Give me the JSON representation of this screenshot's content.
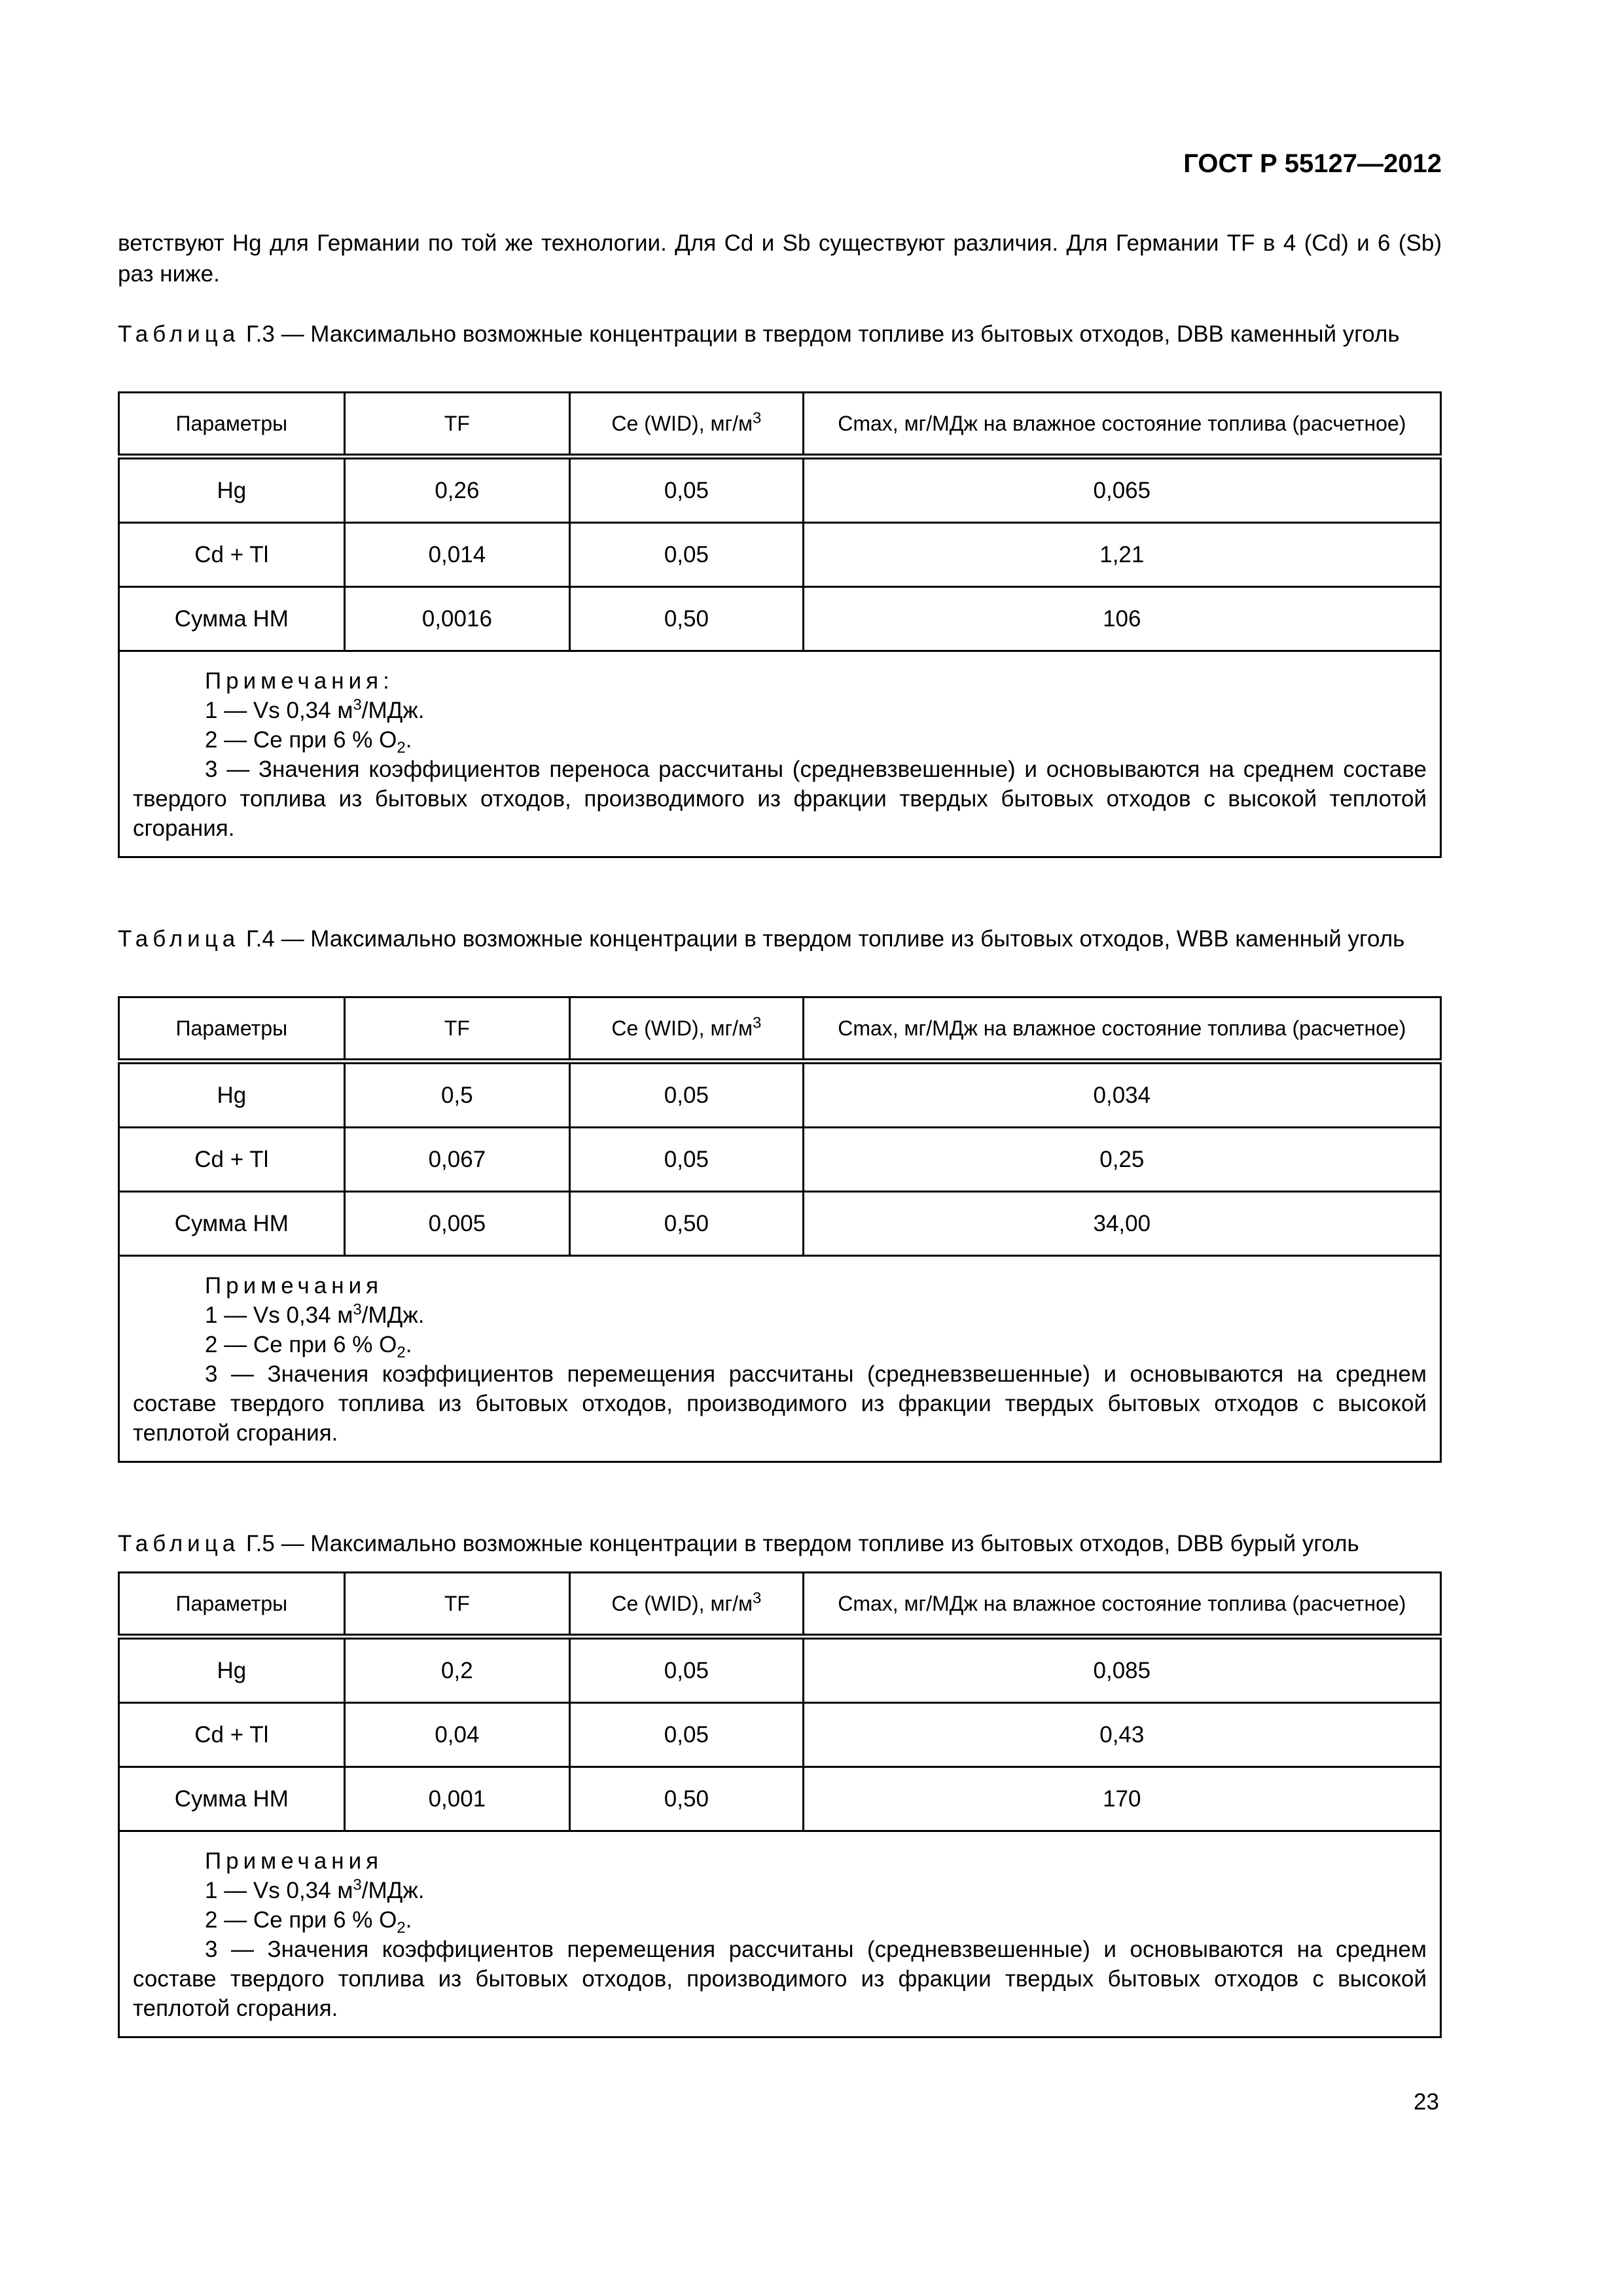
{
  "header": {
    "doc_code": "ГОСТ Р 55127—2012"
  },
  "intro_paragraph": "ветствуют Hg для Германии по той же технологии. Для Cd и Sb существуют различия. Для Германии TF в 4 (Cd) и 6 (Sb) раз ниже.",
  "tables": [
    {
      "label": "Таблица",
      "number": "Г.3",
      "caption": " — Максимально возможные концентрации в твердом топливе из бытовых отходов, DBB каменный уголь",
      "columns": [
        "Параметры",
        "TF",
        "Ce (WID), мг/м",
        "Cmax, мг/МДж на влажное состояние топлива (расчетное)"
      ],
      "superscript": "3",
      "rows": [
        [
          "Hg",
          "0,26",
          "0,05",
          "0,065"
        ],
        [
          "Cd + Tl",
          "0,014",
          "0,05",
          "1,21"
        ],
        [
          "Сумма HM",
          "0,0016",
          "0,50",
          "106"
        ]
      ],
      "notes_title": "Примечания:",
      "note1": "1 — Vs 0,34 м",
      "note1_sup": "3",
      "note1_end": "/МДж.",
      "note2": "2 — Ce при 6 % O",
      "note2_sub": "2",
      "note2_end": ".",
      "note3": "3 — Значения коэффициентов переноса рассчитаны (средневзвешенные) и основываются на среднем составе твердого топлива из бытовых отходов, производимого из фракции твердых бытовых отходов с высокой теплотой сгорания."
    },
    {
      "label": "Таблица",
      "number": "Г.4",
      "caption": " — Максимально возможные концентрации в твердом топливе из бытовых отходов, WBB каменный уголь",
      "columns": [
        "Параметры",
        "TF",
        "Ce (WID), мг/м",
        "Cmax, мг/МДж на влажное состояние топлива (расчетное)"
      ],
      "superscript": "3",
      "rows": [
        [
          "Hg",
          "0,5",
          "0,05",
          "0,034"
        ],
        [
          "Cd + Tl",
          "0,067",
          "0,05",
          "0,25"
        ],
        [
          "Сумма HM",
          "0,005",
          "0,50",
          "34,00"
        ]
      ],
      "notes_title": "Примечания",
      "note1": "1 — Vs 0,34 м",
      "note1_sup": "3",
      "note1_end": "/МДж.",
      "note2": "2 — Ce при 6 % O",
      "note2_sub": "2",
      "note2_end": ".",
      "note3": "3 — Значения коэффициентов перемещения рассчитаны (средневзвешенные) и основываются на среднем составе твердого топлива из бытовых отходов, производимого из фракции твердых бытовых отходов с высокой теплотой сгорания."
    },
    {
      "label": "Таблица",
      "number": "Г.5",
      "caption": " — Максимально возможные концентрации в твердом топливе из бытовых отходов, DBB бурый уголь",
      "columns": [
        "Параметры",
        "TF",
        "Ce (WID), мг/м",
        "Cmax, мг/МДж на влажное состояние топлива (расчетное)"
      ],
      "superscript": "3",
      "rows": [
        [
          "Hg",
          "0,2",
          "0,05",
          "0,085"
        ],
        [
          "Cd + Tl",
          "0,04",
          "0,05",
          "0,43"
        ],
        [
          "Сумма HM",
          "0,001",
          "0,50",
          "170"
        ]
      ],
      "notes_title": "Примечания",
      "note1": "1 — Vs 0,34 м",
      "note1_sup": "3",
      "note1_end": "/МДж.",
      "note2": "2 — Ce при 6 % O",
      "note2_sub": "2",
      "note2_end": ".",
      "note3": "3 — Значения коэффициентов перемещения рассчитаны (средневзвешенные) и основываются на среднем составе твердого топлива из бытовых отходов, производимого из фракции твердых бытовых отходов с высокой теплотой сгорания."
    }
  ],
  "page_number": "23"
}
